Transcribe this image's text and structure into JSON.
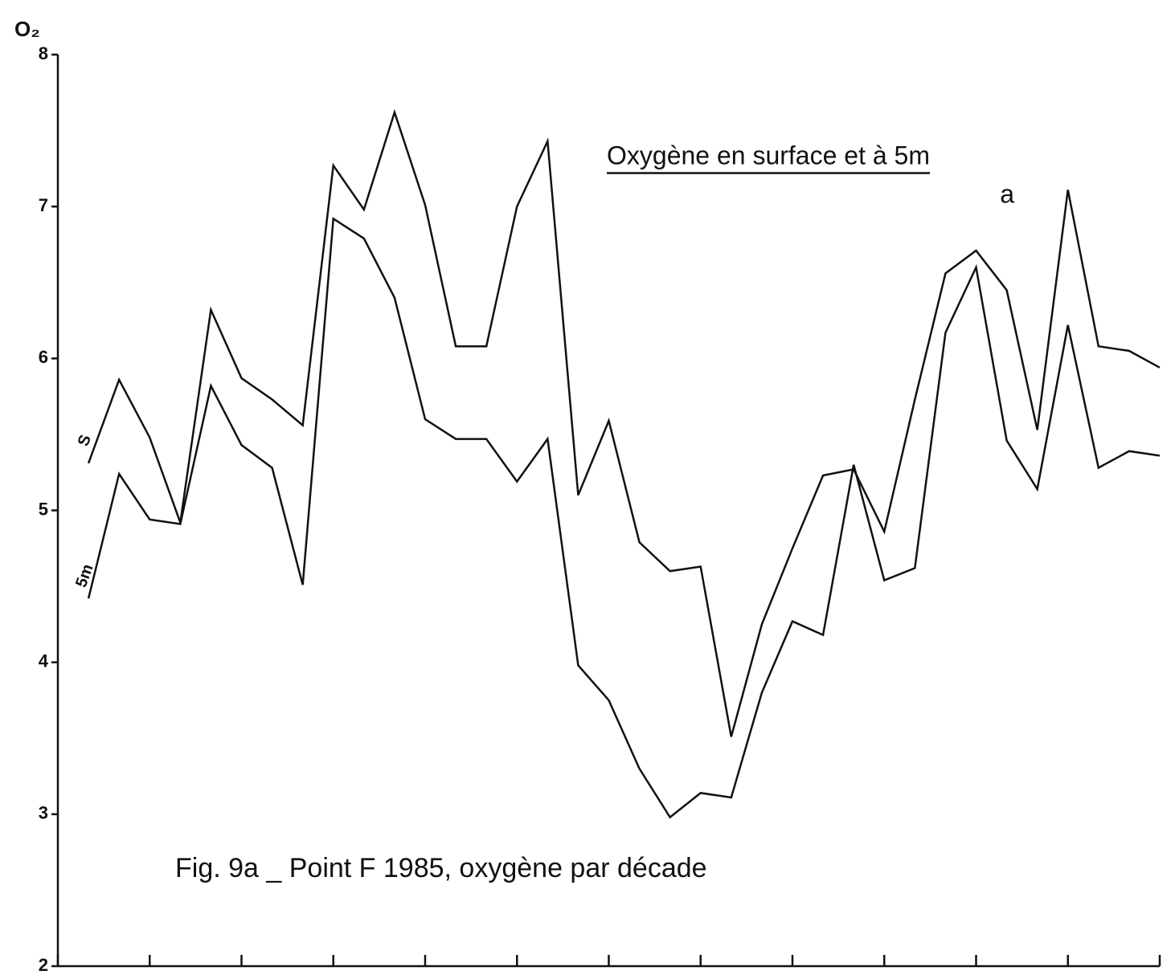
{
  "chart_data": {
    "type": "line",
    "title": "Oxygène en surface et à 5m",
    "subtitle": "a",
    "caption": "Fig. 9a _ Point F 1985, oxygène par décade",
    "y_label": "O₂",
    "x": [
      1,
      2,
      3,
      4,
      5,
      6,
      7,
      8,
      9,
      10,
      11,
      12,
      13,
      14,
      15,
      16,
      17,
      18,
      19,
      20,
      21,
      22,
      23,
      24,
      25,
      26,
      27,
      28,
      29,
      30,
      31,
      32,
      33,
      34,
      35,
      36
    ],
    "series": [
      {
        "name": "S",
        "color": "#111111",
        "values": [
          5.31,
          5.86,
          5.48,
          4.92,
          6.32,
          5.87,
          5.73,
          5.56,
          7.27,
          6.98,
          7.62,
          7.01,
          6.08,
          6.08,
          7.0,
          7.43,
          5.1,
          5.59,
          4.79,
          4.6,
          4.63,
          3.51,
          4.25,
          4.75,
          5.23,
          5.27,
          4.86,
          5.73,
          6.56,
          6.71,
          6.45,
          5.53,
          7.11,
          6.08,
          6.05,
          5.94
        ]
      },
      {
        "name": "5m",
        "color": "#111111",
        "values": [
          4.42,
          5.24,
          4.94,
          4.91,
          5.82,
          5.43,
          5.28,
          4.51,
          6.92,
          6.79,
          6.4,
          5.6,
          5.47,
          5.47,
          5.19,
          5.47,
          3.98,
          3.75,
          3.3,
          2.98,
          3.14,
          3.11,
          3.8,
          4.27,
          4.18,
          5.3,
          4.54,
          4.62,
          6.17,
          6.6,
          5.46,
          5.14,
          6.22,
          5.28,
          5.39,
          5.36
        ]
      }
    ],
    "xlim": [
      0,
      36
    ],
    "xticks": [
      0,
      3,
      6,
      9,
      12,
      15,
      18,
      21,
      24,
      27,
      30,
      33,
      36
    ],
    "ylim": [
      2,
      8
    ],
    "yticks": [
      2,
      3,
      4,
      5,
      6,
      7,
      8
    ]
  }
}
